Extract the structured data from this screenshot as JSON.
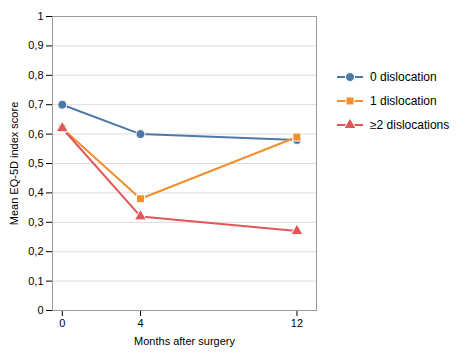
{
  "chart_data": {
    "type": "line",
    "x": [
      0,
      4,
      12
    ],
    "series": [
      {
        "name": "0 dislocation",
        "values": [
          0.7,
          0.6,
          0.58
        ],
        "marker": "circle"
      },
      {
        "name": "1 dislocation",
        "values": [
          0.62,
          0.38,
          0.59
        ],
        "marker": "square"
      },
      {
        "name": "≥2 dislocations",
        "values": [
          0.62,
          0.32,
          0.27
        ],
        "marker": "triangle"
      }
    ],
    "xlabel": "Months after surgery",
    "ylabel": "Mean EQ-5D index score",
    "xlim": [
      -0.5,
      13.0
    ],
    "xticks": [
      0,
      4,
      12
    ],
    "ylim": [
      0,
      1.0
    ],
    "yticks": [
      0,
      {
        "value": 0.1,
        "label": "0,1"
      },
      {
        "value": 0.2,
        "label": "0,2"
      },
      {
        "value": 0.3,
        "label": "0,3"
      },
      {
        "value": 0.4,
        "label": "0,4"
      },
      {
        "value": 0.5,
        "label": "0,5"
      },
      {
        "value": 0.6,
        "label": "0,6"
      },
      {
        "value": 0.7,
        "label": "0,7"
      },
      {
        "value": 0.8,
        "label": "0,8"
      },
      {
        "value": 0.9,
        "label": "0,9"
      },
      1
    ],
    "grid": "y",
    "legend": "right"
  }
}
